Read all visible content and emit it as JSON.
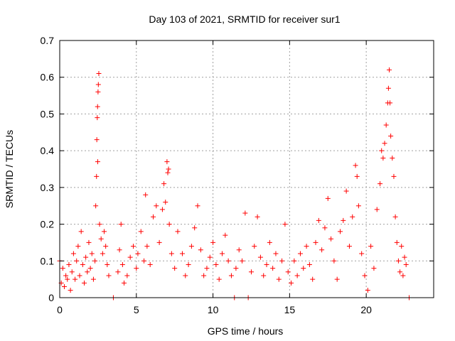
{
  "chart_data": {
    "type": "scatter",
    "title": "Day 103 of 2021, SRMTID for receiver sur1",
    "xlabel": "GPS time / hours",
    "ylabel": "SRMTID / TECUs",
    "xlim": [
      0,
      24.4
    ],
    "ylim": [
      0,
      0.7
    ],
    "xticks": [
      0,
      5,
      10,
      15,
      20
    ],
    "xtick_labels": [
      "0",
      "5",
      "10",
      "15",
      "20"
    ],
    "yticks": [
      0,
      0.1,
      0.2,
      0.3,
      0.4,
      0.5,
      0.6,
      0.7
    ],
    "ytick_labels": [
      "0",
      "0.1",
      "0.2",
      "0.3",
      "0.4",
      "0.5",
      "0.6",
      "0.7"
    ],
    "grid": true,
    "marker": "plus",
    "color": "#ff0000",
    "series": [
      {
        "name": "SRMTID",
        "points": [
          [
            0.0,
            0.1
          ],
          [
            0.1,
            0.04
          ],
          [
            0.2,
            0.08
          ],
          [
            0.3,
            0.03
          ],
          [
            0.4,
            0.06
          ],
          [
            0.5,
            0.05
          ],
          [
            0.6,
            0.09
          ],
          [
            0.7,
            0.02
          ],
          [
            0.8,
            0.07
          ],
          [
            0.9,
            0.12
          ],
          [
            1.0,
            0.05
          ],
          [
            1.1,
            0.1
          ],
          [
            1.2,
            0.14
          ],
          [
            1.3,
            0.06
          ],
          [
            1.4,
            0.18
          ],
          [
            1.5,
            0.09
          ],
          [
            1.6,
            0.04
          ],
          [
            1.7,
            0.11
          ],
          [
            1.8,
            0.07
          ],
          [
            1.9,
            0.15
          ],
          [
            2.0,
            0.08
          ],
          [
            2.1,
            0.12
          ],
          [
            2.2,
            0.05
          ],
          [
            2.3,
            0.1
          ],
          [
            2.35,
            0.25
          ],
          [
            2.4,
            0.33
          ],
          [
            2.42,
            0.43
          ],
          [
            2.45,
            0.49
          ],
          [
            2.47,
            0.52
          ],
          [
            2.5,
            0.56
          ],
          [
            2.52,
            0.58
          ],
          [
            2.55,
            0.61
          ],
          [
            2.48,
            0.37
          ],
          [
            2.6,
            0.2
          ],
          [
            2.7,
            0.16
          ],
          [
            2.8,
            0.12
          ],
          [
            2.9,
            0.18
          ],
          [
            3.0,
            0.14
          ],
          [
            3.1,
            0.09
          ],
          [
            3.2,
            0.06
          ],
          [
            3.5,
            0.0
          ],
          [
            3.8,
            0.07
          ],
          [
            3.9,
            0.13
          ],
          [
            4.0,
            0.2
          ],
          [
            4.1,
            0.09
          ],
          [
            4.2,
            0.04
          ],
          [
            4.4,
            0.06
          ],
          [
            4.6,
            0.11
          ],
          [
            4.8,
            0.14
          ],
          [
            5.0,
            0.08
          ],
          [
            5.1,
            0.12
          ],
          [
            5.3,
            0.18
          ],
          [
            5.5,
            0.1
          ],
          [
            5.6,
            0.28
          ],
          [
            5.7,
            0.14
          ],
          [
            5.9,
            0.09
          ],
          [
            6.1,
            0.22
          ],
          [
            6.3,
            0.25
          ],
          [
            6.5,
            0.15
          ],
          [
            6.7,
            0.24
          ],
          [
            6.8,
            0.31
          ],
          [
            6.9,
            0.26
          ],
          [
            7.0,
            0.37
          ],
          [
            7.05,
            0.34
          ],
          [
            7.1,
            0.35
          ],
          [
            7.15,
            0.2
          ],
          [
            7.3,
            0.12
          ],
          [
            7.5,
            0.08
          ],
          [
            7.7,
            0.18
          ],
          [
            8.0,
            0.12
          ],
          [
            8.2,
            0.06
          ],
          [
            8.4,
            0.09
          ],
          [
            8.6,
            0.14
          ],
          [
            8.8,
            0.19
          ],
          [
            9.0,
            0.25
          ],
          [
            9.2,
            0.13
          ],
          [
            9.4,
            0.06
          ],
          [
            9.6,
            0.08
          ],
          [
            9.8,
            0.11
          ],
          [
            10.0,
            0.15
          ],
          [
            10.2,
            0.09
          ],
          [
            10.4,
            0.05
          ],
          [
            10.6,
            0.12
          ],
          [
            10.8,
            0.17
          ],
          [
            11.0,
            0.1
          ],
          [
            11.2,
            0.06
          ],
          [
            11.4,
            0.0
          ],
          [
            11.5,
            0.08
          ],
          [
            11.7,
            0.13
          ],
          [
            11.9,
            0.1
          ],
          [
            12.1,
            0.23
          ],
          [
            12.3,
            0.0
          ],
          [
            12.5,
            0.07
          ],
          [
            12.7,
            0.14
          ],
          [
            12.9,
            0.22
          ],
          [
            13.1,
            0.11
          ],
          [
            13.3,
            0.06
          ],
          [
            13.5,
            0.09
          ],
          [
            13.7,
            0.15
          ],
          [
            13.9,
            0.08
          ],
          [
            14.1,
            0.12
          ],
          [
            14.3,
            0.05
          ],
          [
            14.5,
            0.1
          ],
          [
            14.7,
            0.2
          ],
          [
            14.9,
            0.07
          ],
          [
            15.1,
            0.04
          ],
          [
            15.3,
            0.1
          ],
          [
            15.5,
            0.06
          ],
          [
            15.7,
            0.12
          ],
          [
            15.9,
            0.08
          ],
          [
            16.1,
            0.14
          ],
          [
            16.3,
            0.09
          ],
          [
            16.5,
            0.05
          ],
          [
            16.7,
            0.15
          ],
          [
            16.9,
            0.21
          ],
          [
            17.1,
            0.13
          ],
          [
            17.3,
            0.19
          ],
          [
            17.5,
            0.27
          ],
          [
            17.7,
            0.16
          ],
          [
            17.9,
            0.1
          ],
          [
            18.1,
            0.05
          ],
          [
            18.3,
            0.18
          ],
          [
            18.5,
            0.21
          ],
          [
            18.7,
            0.29
          ],
          [
            18.9,
            0.14
          ],
          [
            19.1,
            0.22
          ],
          [
            19.3,
            0.36
          ],
          [
            19.4,
            0.33
          ],
          [
            19.5,
            0.25
          ],
          [
            19.7,
            0.12
          ],
          [
            19.9,
            0.06
          ],
          [
            20.1,
            0.02
          ],
          [
            20.3,
            0.14
          ],
          [
            20.5,
            0.08
          ],
          [
            20.7,
            0.24
          ],
          [
            20.9,
            0.31
          ],
          [
            21.0,
            0.4
          ],
          [
            21.1,
            0.38
          ],
          [
            21.2,
            0.42
          ],
          [
            21.3,
            0.47
          ],
          [
            21.4,
            0.53
          ],
          [
            21.45,
            0.57
          ],
          [
            21.5,
            0.62
          ],
          [
            21.55,
            0.53
          ],
          [
            21.6,
            0.44
          ],
          [
            21.7,
            0.38
          ],
          [
            21.8,
            0.33
          ],
          [
            21.9,
            0.22
          ],
          [
            22.0,
            0.15
          ],
          [
            22.1,
            0.1
          ],
          [
            22.2,
            0.07
          ],
          [
            22.3,
            0.14
          ],
          [
            22.4,
            0.06
          ],
          [
            22.5,
            0.11
          ],
          [
            22.6,
            0.09
          ],
          [
            22.8,
            0.0
          ]
        ]
      }
    ]
  }
}
